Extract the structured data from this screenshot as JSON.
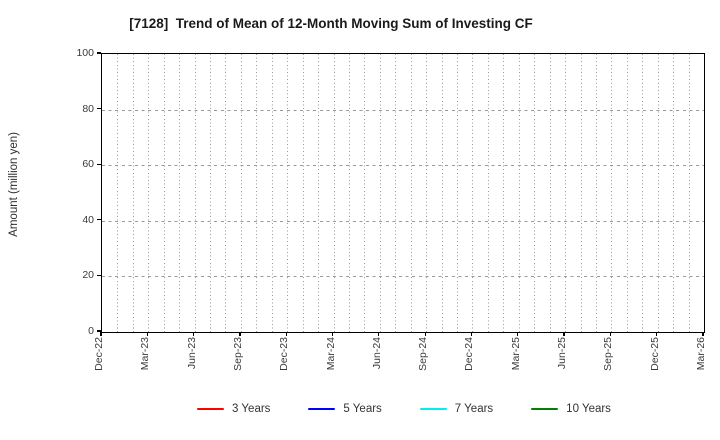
{
  "title": "[7128]  Trend of Mean of 12-Month Moving Sum of Investing CF",
  "chart_data": {
    "type": "line",
    "title": "[7128]  Trend of Mean of 12-Month Moving Sum of Investing CF",
    "xlabel": "",
    "ylabel": "Amount (million yen)",
    "ylim": [
      0,
      100
    ],
    "yticks": [
      0,
      20,
      40,
      60,
      80,
      100
    ],
    "xticks": [
      "Dec-22",
      "Mar-23",
      "Jun-23",
      "Sep-23",
      "Dec-23",
      "Mar-24",
      "Jun-24",
      "Sep-24",
      "Dec-24",
      "Mar-25",
      "Jun-25",
      "Sep-25",
      "Dec-25",
      "Mar-26"
    ],
    "x_total_months": 39,
    "x_minor_grid_interval_months": 1,
    "x_major_tick_interval_months": 3,
    "grid": true,
    "legend_position": "bottom-center",
    "series": [
      {
        "name": "3 Years",
        "color": "#ff0000",
        "values": []
      },
      {
        "name": "5 Years",
        "color": "#0000ff",
        "values": []
      },
      {
        "name": "7 Years",
        "color": "#00eeee",
        "values": []
      },
      {
        "name": "10 Years",
        "color": "#008000",
        "values": []
      }
    ]
  }
}
